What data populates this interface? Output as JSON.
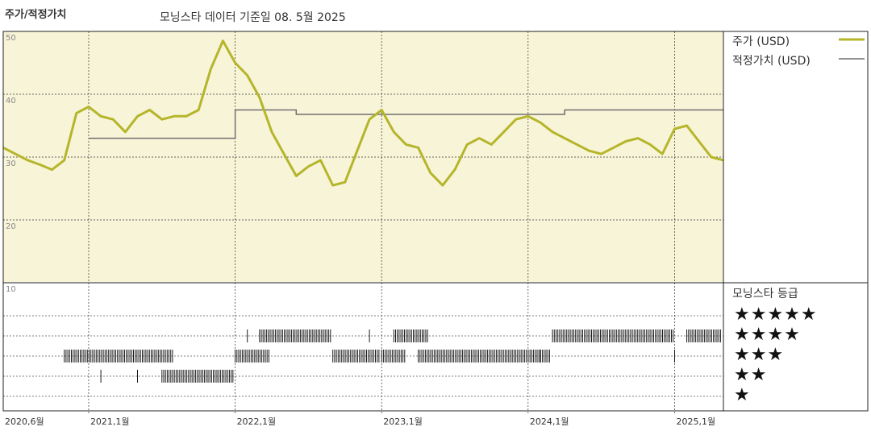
{
  "header": {
    "left_title": "주가/적정가치",
    "main_title": "모닝스타 데이터 기준일 08. 5월 2025"
  },
  "legend": {
    "price_label": "주가 (USD)",
    "fair_label": "적정가치 (USD)",
    "price_color": "#b5b52a",
    "fair_color": "#6f6f6f"
  },
  "rating_panel": {
    "title": "모닝스타 등급",
    "levels": [
      "★★★★★",
      "★★★★",
      "★★★",
      "★★",
      "★"
    ]
  },
  "chart_data": {
    "type": "line",
    "ylim": [
      10,
      50
    ],
    "yticks": [
      "50",
      "40",
      "30",
      "20",
      "10"
    ],
    "x_range": [
      "2020-06",
      "2025-05"
    ],
    "x_ticks": [
      {
        "date": "2020-06",
        "label": "2020,6월"
      },
      {
        "date": "2021-01",
        "label": "2021,1월"
      },
      {
        "date": "2022-01",
        "label": "2022,1월"
      },
      {
        "date": "2023-01",
        "label": "2023,1월"
      },
      {
        "date": "2024-01",
        "label": "2024,1월"
      },
      {
        "date": "2025-01",
        "label": "2025,1월"
      }
    ],
    "price_series": {
      "name": "주가 (USD)",
      "points": [
        [
          "2020-06",
          31.5
        ],
        [
          "2020-07",
          30.5
        ],
        [
          "2020-08",
          29.5
        ],
        [
          "2020-09",
          28.8
        ],
        [
          "2020-10",
          28.0
        ],
        [
          "2020-11",
          29.5
        ],
        [
          "2020-12",
          37.0
        ],
        [
          "2021-01",
          38.0
        ],
        [
          "2021-02",
          36.5
        ],
        [
          "2021-03",
          36.0
        ],
        [
          "2021-04",
          34.0
        ],
        [
          "2021-05",
          36.5
        ],
        [
          "2021-06",
          37.5
        ],
        [
          "2021-07",
          36.0
        ],
        [
          "2021-08",
          36.5
        ],
        [
          "2021-09",
          36.5
        ],
        [
          "2021-10",
          37.5
        ],
        [
          "2021-11",
          44.0
        ],
        [
          "2021-12",
          48.5
        ],
        [
          "2022-01",
          45.0
        ],
        [
          "2022-02",
          43.0
        ],
        [
          "2022-03",
          39.5
        ],
        [
          "2022-04",
          34.0
        ],
        [
          "2022-05",
          30.5
        ],
        [
          "2022-06",
          27.0
        ],
        [
          "2022-07",
          28.5
        ],
        [
          "2022-08",
          29.5
        ],
        [
          "2022-09",
          25.5
        ],
        [
          "2022-10",
          26.0
        ],
        [
          "2022-11",
          31.0
        ],
        [
          "2022-12",
          36.0
        ],
        [
          "2023-01",
          37.5
        ],
        [
          "2023-02",
          34.0
        ],
        [
          "2023-03",
          32.0
        ],
        [
          "2023-04",
          31.5
        ],
        [
          "2023-05",
          27.5
        ],
        [
          "2023-06",
          25.5
        ],
        [
          "2023-07",
          28.0
        ],
        [
          "2023-08",
          32.0
        ],
        [
          "2023-09",
          33.0
        ],
        [
          "2023-10",
          32.0
        ],
        [
          "2023-11",
          34.0
        ],
        [
          "2023-12",
          36.0
        ],
        [
          "2024-01",
          36.5
        ],
        [
          "2024-02",
          35.5
        ],
        [
          "2024-03",
          34.0
        ],
        [
          "2024-04",
          33.0
        ],
        [
          "2024-05",
          32.0
        ],
        [
          "2024-06",
          31.0
        ],
        [
          "2024-07",
          30.5
        ],
        [
          "2024-08",
          31.5
        ],
        [
          "2024-09",
          32.5
        ],
        [
          "2024-10",
          33.0
        ],
        [
          "2024-11",
          32.0
        ],
        [
          "2024-12",
          30.5
        ],
        [
          "2025-01",
          34.5
        ],
        [
          "2025-02",
          35.0
        ],
        [
          "2025-03",
          32.5
        ],
        [
          "2025-04",
          30.0
        ],
        [
          "2025-05",
          29.5
        ]
      ]
    },
    "fair_value_series": {
      "name": "적정가치 (USD)",
      "points": [
        [
          "2021-01",
          33.0
        ],
        [
          "2022-01",
          33.0
        ],
        [
          "2022-01",
          37.5
        ],
        [
          "2022-06",
          37.5
        ],
        [
          "2022-06",
          36.8
        ],
        [
          "2024-04",
          36.8
        ],
        [
          "2024-04",
          37.5
        ],
        [
          "2025-05",
          37.5
        ]
      ]
    },
    "rating_history": [
      {
        "start": "2020-11",
        "end": "2021-07",
        "stars": 3
      },
      {
        "start": "2021-02",
        "end": "2021-02",
        "stars": 2
      },
      {
        "start": "2021-05",
        "end": "2021-05",
        "stars": 2
      },
      {
        "start": "2021-07",
        "end": "2021-12",
        "stars": 2
      },
      {
        "start": "2022-01",
        "end": "2022-03",
        "stars": 3
      },
      {
        "start": "2022-02",
        "end": "2022-02",
        "stars": 4
      },
      {
        "start": "2022-03",
        "end": "2022-08",
        "stars": 4
      },
      {
        "start": "2022-09",
        "end": "2022-12",
        "stars": 3
      },
      {
        "start": "2022-12",
        "end": "2022-12",
        "stars": 4
      },
      {
        "start": "2023-01",
        "end": "2023-02",
        "stars": 3
      },
      {
        "start": "2023-02",
        "end": "2023-04",
        "stars": 4
      },
      {
        "start": "2023-04",
        "end": "2024-02",
        "stars": 3
      },
      {
        "start": "2024-02",
        "end": "2024-02",
        "stars": 3
      },
      {
        "start": "2024-03",
        "end": "2024-12",
        "stars": 4
      },
      {
        "start": "2025-01",
        "end": "2025-01",
        "stars": 3
      },
      {
        "start": "2025-02",
        "end": "2025-04",
        "stars": 4
      }
    ]
  }
}
